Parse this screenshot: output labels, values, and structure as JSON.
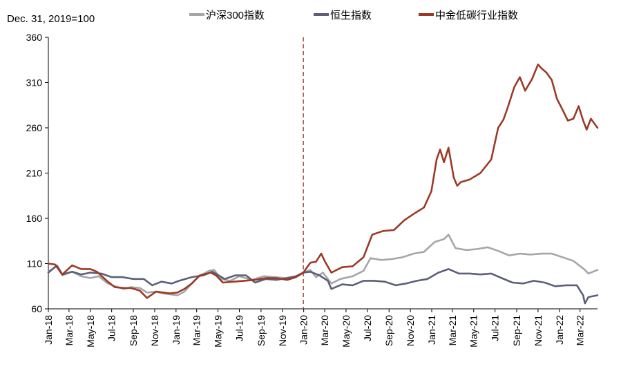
{
  "chart_data": {
    "type": "line",
    "unit_label": "Dec. 31, 2019=100",
    "ylim": [
      60,
      360
    ],
    "yticks": [
      60,
      110,
      160,
      210,
      260,
      310,
      360
    ],
    "xlim": [
      "2018-01-01",
      "2022-04-20"
    ],
    "xticks": [
      "Jan-18",
      "Mar-18",
      "May-18",
      "Jul-18",
      "Sep-18",
      "Nov-18",
      "Jan-19",
      "Mar-19",
      "May-19",
      "Jul-19",
      "Sep-19",
      "Nov-19",
      "Jan-20",
      "Mar-20",
      "May-20",
      "Jul-20",
      "Sep-20",
      "Nov-20",
      "Jan-21",
      "Mar-21",
      "May-21",
      "Jul-21",
      "Sep-21",
      "Nov-21",
      "Jan-22",
      "Mar-22"
    ],
    "reference_line": {
      "x": "2019-12-31",
      "style": "dashed",
      "color": "#9b2d25"
    },
    "legend_position": "top",
    "grid": false,
    "series": [
      {
        "name": "沪深300指数",
        "color": "#a6a6a6",
        "points": [
          [
            "2018-01-01",
            101
          ],
          [
            "2018-01-25",
            107
          ],
          [
            "2018-02-10",
            97
          ],
          [
            "2018-03-10",
            101
          ],
          [
            "2018-04-05",
            96
          ],
          [
            "2018-05-01",
            94
          ],
          [
            "2018-05-25",
            96
          ],
          [
            "2018-06-20",
            88
          ],
          [
            "2018-07-10",
            85
          ],
          [
            "2018-08-05",
            82
          ],
          [
            "2018-08-25",
            84
          ],
          [
            "2018-09-20",
            83
          ],
          [
            "2018-10-10",
            78
          ],
          [
            "2018-11-05",
            79
          ],
          [
            "2018-11-25",
            77
          ],
          [
            "2018-12-15",
            76
          ],
          [
            "2019-01-05",
            75
          ],
          [
            "2019-01-25",
            79
          ],
          [
            "2019-02-15",
            88
          ],
          [
            "2019-03-05",
            95
          ],
          [
            "2019-04-05",
            102
          ],
          [
            "2019-04-20",
            103
          ],
          [
            "2019-05-10",
            93
          ],
          [
            "2019-06-05",
            91
          ],
          [
            "2019-07-01",
            96
          ],
          [
            "2019-08-05",
            92
          ],
          [
            "2019-09-10",
            96
          ],
          [
            "2019-10-10",
            95
          ],
          [
            "2019-11-10",
            94
          ],
          [
            "2019-12-10",
            96
          ],
          [
            "2019-12-31",
            100
          ],
          [
            "2020-01-20",
            103
          ],
          [
            "2020-02-05",
            95
          ],
          [
            "2020-02-25",
            100
          ],
          [
            "2020-03-20",
            88
          ],
          [
            "2020-04-15",
            93
          ],
          [
            "2020-05-20",
            96
          ],
          [
            "2020-06-20",
            102
          ],
          [
            "2020-07-10",
            116
          ],
          [
            "2020-08-10",
            114
          ],
          [
            "2020-09-10",
            115
          ],
          [
            "2020-10-10",
            117
          ],
          [
            "2020-11-10",
            121
          ],
          [
            "2020-12-10",
            123
          ],
          [
            "2021-01-10",
            134
          ],
          [
            "2021-02-05",
            137
          ],
          [
            "2021-02-18",
            142
          ],
          [
            "2021-03-10",
            127
          ],
          [
            "2021-04-10",
            125
          ],
          [
            "2021-05-10",
            126
          ],
          [
            "2021-06-10",
            128
          ],
          [
            "2021-07-10",
            124
          ],
          [
            "2021-08-10",
            119
          ],
          [
            "2021-09-10",
            121
          ],
          [
            "2021-10-10",
            120
          ],
          [
            "2021-11-10",
            121
          ],
          [
            "2021-12-10",
            121
          ],
          [
            "2022-01-10",
            117
          ],
          [
            "2022-02-10",
            113
          ],
          [
            "2022-03-15",
            103
          ],
          [
            "2022-03-25",
            99
          ],
          [
            "2022-04-20",
            103
          ]
        ]
      },
      {
        "name": "恒生指数",
        "color": "#5b5f78",
        "points": [
          [
            "2018-01-01",
            100
          ],
          [
            "2018-01-25",
            108
          ],
          [
            "2018-02-10",
            98
          ],
          [
            "2018-03-10",
            101
          ],
          [
            "2018-04-05",
            98
          ],
          [
            "2018-05-01",
            100
          ],
          [
            "2018-06-01",
            99
          ],
          [
            "2018-07-01",
            95
          ],
          [
            "2018-08-01",
            95
          ],
          [
            "2018-09-01",
            93
          ],
          [
            "2018-10-01",
            93
          ],
          [
            "2018-10-25",
            86
          ],
          [
            "2018-11-20",
            90
          ],
          [
            "2018-12-20",
            88
          ],
          [
            "2019-01-10",
            91
          ],
          [
            "2019-02-15",
            95
          ],
          [
            "2019-03-20",
            97
          ],
          [
            "2019-04-15",
            101
          ],
          [
            "2019-05-20",
            93
          ],
          [
            "2019-06-20",
            97
          ],
          [
            "2019-07-20",
            97
          ],
          [
            "2019-08-15",
            89
          ],
          [
            "2019-09-15",
            93
          ],
          [
            "2019-10-15",
            92
          ],
          [
            "2019-11-15",
            94
          ],
          [
            "2019-12-10",
            96
          ],
          [
            "2019-12-31",
            100
          ],
          [
            "2020-01-20",
            101
          ],
          [
            "2020-02-15",
            97
          ],
          [
            "2020-03-10",
            91
          ],
          [
            "2020-03-20",
            82
          ],
          [
            "2020-04-20",
            87
          ],
          [
            "2020-05-20",
            86
          ],
          [
            "2020-06-20",
            91
          ],
          [
            "2020-07-20",
            91
          ],
          [
            "2020-08-20",
            90
          ],
          [
            "2020-09-20",
            86
          ],
          [
            "2020-10-20",
            88
          ],
          [
            "2020-11-20",
            91
          ],
          [
            "2020-12-20",
            93
          ],
          [
            "2021-01-20",
            100
          ],
          [
            "2021-02-18",
            104
          ],
          [
            "2021-03-20",
            99
          ],
          [
            "2021-04-20",
            99
          ],
          [
            "2021-05-20",
            98
          ],
          [
            "2021-06-20",
            99
          ],
          [
            "2021-07-20",
            94
          ],
          [
            "2021-08-20",
            89
          ],
          [
            "2021-09-20",
            88
          ],
          [
            "2021-10-20",
            91
          ],
          [
            "2021-11-20",
            89
          ],
          [
            "2021-12-20",
            85
          ],
          [
            "2022-01-20",
            86
          ],
          [
            "2022-02-20",
            86
          ],
          [
            "2022-03-10",
            75
          ],
          [
            "2022-03-15",
            66
          ],
          [
            "2022-03-25",
            73
          ],
          [
            "2022-04-20",
            75
          ]
        ]
      },
      {
        "name": "中金低碳行业指数",
        "color": "#9b3a26",
        "points": [
          [
            "2018-01-01",
            110
          ],
          [
            "2018-01-20",
            109
          ],
          [
            "2018-02-10",
            98
          ],
          [
            "2018-03-10",
            108
          ],
          [
            "2018-04-05",
            104
          ],
          [
            "2018-05-01",
            104
          ],
          [
            "2018-05-20",
            101
          ],
          [
            "2018-06-20",
            90
          ],
          [
            "2018-07-10",
            84
          ],
          [
            "2018-08-05",
            83
          ],
          [
            "2018-08-25",
            83
          ],
          [
            "2018-09-20",
            80
          ],
          [
            "2018-10-10",
            72
          ],
          [
            "2018-11-05",
            79
          ],
          [
            "2018-11-25",
            78
          ],
          [
            "2018-12-15",
            77
          ],
          [
            "2019-01-05",
            78
          ],
          [
            "2019-01-25",
            82
          ],
          [
            "2019-02-15",
            88
          ],
          [
            "2019-03-10",
            97
          ],
          [
            "2019-04-10",
            100
          ],
          [
            "2019-04-25",
            97
          ],
          [
            "2019-05-15",
            89
          ],
          [
            "2019-06-15",
            90
          ],
          [
            "2019-07-15",
            91
          ],
          [
            "2019-08-15",
            92
          ],
          [
            "2019-09-15",
            94
          ],
          [
            "2019-10-15",
            94
          ],
          [
            "2019-11-15",
            92
          ],
          [
            "2019-12-10",
            95
          ],
          [
            "2019-12-31",
            100
          ],
          [
            "2020-01-20",
            111
          ],
          [
            "2020-02-05",
            112
          ],
          [
            "2020-02-20",
            121
          ],
          [
            "2020-03-01",
            113
          ],
          [
            "2020-03-20",
            100
          ],
          [
            "2020-04-20",
            106
          ],
          [
            "2020-05-20",
            107
          ],
          [
            "2020-06-20",
            117
          ],
          [
            "2020-07-01",
            128
          ],
          [
            "2020-07-15",
            142
          ],
          [
            "2020-08-15",
            146
          ],
          [
            "2020-09-15",
            147
          ],
          [
            "2020-10-15",
            158
          ],
          [
            "2020-11-15",
            166
          ],
          [
            "2020-12-10",
            172
          ],
          [
            "2020-12-31",
            190
          ],
          [
            "2021-01-15",
            225
          ],
          [
            "2021-01-25",
            236
          ],
          [
            "2021-02-05",
            222
          ],
          [
            "2021-02-18",
            238
          ],
          [
            "2021-03-05",
            205
          ],
          [
            "2021-03-15",
            196
          ],
          [
            "2021-03-25",
            200
          ],
          [
            "2021-04-20",
            203
          ],
          [
            "2021-05-20",
            210
          ],
          [
            "2021-06-20",
            225
          ],
          [
            "2021-07-10",
            260
          ],
          [
            "2021-07-25",
            269
          ],
          [
            "2021-08-05",
            281
          ],
          [
            "2021-08-25",
            305
          ],
          [
            "2021-09-10",
            316
          ],
          [
            "2021-09-25",
            301
          ],
          [
            "2021-10-15",
            314
          ],
          [
            "2021-11-01",
            330
          ],
          [
            "2021-11-10",
            326
          ],
          [
            "2021-11-25",
            321
          ],
          [
            "2021-12-10",
            313
          ],
          [
            "2021-12-25",
            292
          ],
          [
            "2022-01-10",
            280
          ],
          [
            "2022-01-25",
            268
          ],
          [
            "2022-02-10",
            270
          ],
          [
            "2022-02-25",
            284
          ],
          [
            "2022-03-10",
            268
          ],
          [
            "2022-03-20",
            258
          ],
          [
            "2022-04-01",
            270
          ],
          [
            "2022-04-20",
            260
          ]
        ]
      }
    ]
  }
}
